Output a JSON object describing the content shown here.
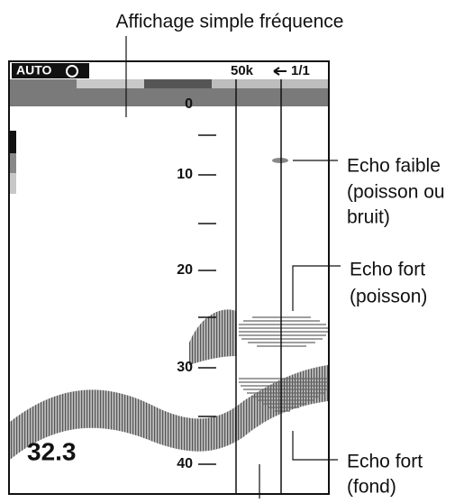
{
  "title": "Affichage simple fréquence",
  "screen": {
    "mode": "AUTO",
    "frequency": "50k",
    "range": "1/1",
    "depth_reading": "32.3",
    "scale": [
      "0",
      "10",
      "20",
      "30",
      "40"
    ]
  },
  "annotations": [
    {
      "lines": [
        "Echo faible",
        "(poisson ou",
        "bruit)"
      ]
    },
    {
      "lines": [
        "Echo fort",
        "(poisson)"
      ]
    },
    {
      "lines": [
        "Echo fort",
        "(fond)"
      ]
    }
  ]
}
